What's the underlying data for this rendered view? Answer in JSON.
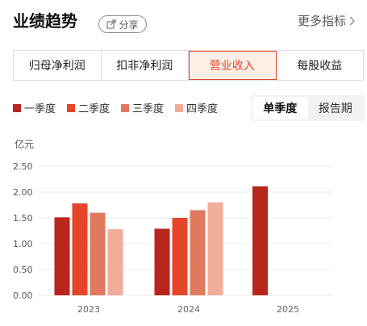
{
  "header": {
    "title": "业绩趋势",
    "share_label": "分享",
    "more_label": "更多指标"
  },
  "tabs": [
    {
      "label": "归母净利润",
      "active": false
    },
    {
      "label": "扣非净利润",
      "active": false
    },
    {
      "label": "营业收入",
      "active": true
    },
    {
      "label": "每股收益",
      "active": false
    }
  ],
  "mode_toggle": {
    "options": [
      "单季度",
      "报告期"
    ],
    "selected": "单季度"
  },
  "colors": {
    "accent": "#e5462a",
    "q1": "#b8261c",
    "q2": "#e5462a",
    "q3": "#e07a5f",
    "q4": "#f0ad9a"
  },
  "chart_data": {
    "type": "bar",
    "unit": "亿元",
    "categories": [
      "2023",
      "2024",
      "2025"
    ],
    "series": [
      {
        "name": "一季度",
        "values": [
          1.51,
          1.29,
          2.11
        ]
      },
      {
        "name": "二季度",
        "values": [
          1.78,
          1.5,
          null
        ]
      },
      {
        "name": "三季度",
        "values": [
          1.6,
          1.65,
          null
        ]
      },
      {
        "name": "四季度",
        "values": [
          1.28,
          1.8,
          null
        ]
      }
    ],
    "ylim": [
      0,
      2.5
    ],
    "yticks": [
      "0.00",
      "0.50",
      "1.00",
      "1.50",
      "2.00",
      "2.50"
    ],
    "grid": true,
    "legend_position": "top-left"
  }
}
